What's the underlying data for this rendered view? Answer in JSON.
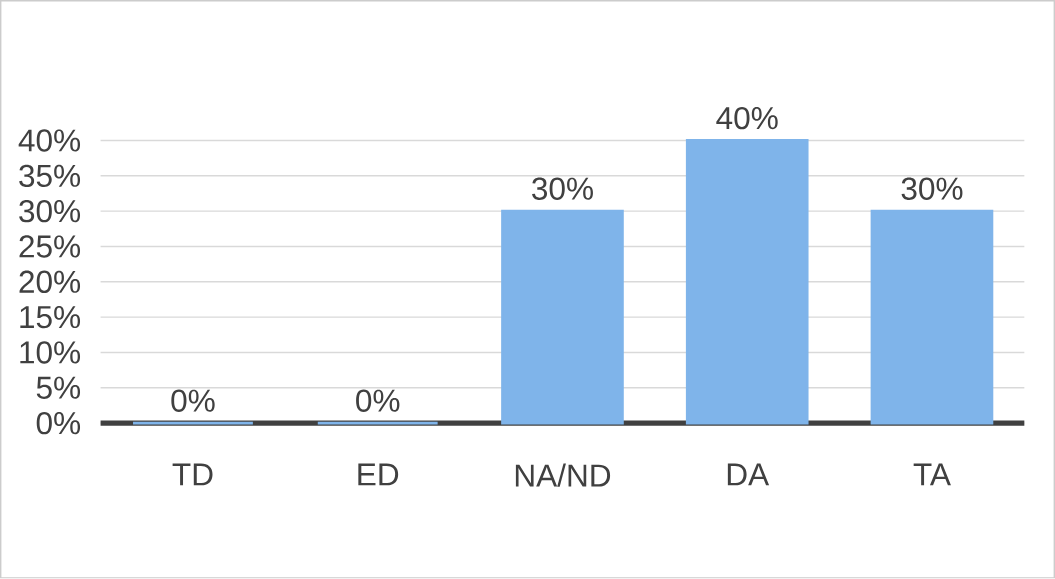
{
  "chart_data": {
    "type": "bar",
    "categories": [
      "TD",
      "ED",
      "NA/ND",
      "DA",
      "TA"
    ],
    "values": [
      0,
      0,
      30,
      40,
      30
    ],
    "value_labels": [
      "0%",
      "0%",
      "30%",
      "40%",
      "30%"
    ],
    "color": "#7fb4ea",
    "ylim": [
      0,
      40
    ],
    "yticks": [
      {
        "value": 0,
        "label": "0%"
      },
      {
        "value": 5,
        "label": "5%"
      },
      {
        "value": 10,
        "label": "10%"
      },
      {
        "value": 15,
        "label": "15%"
      },
      {
        "value": 20,
        "label": "20%"
      },
      {
        "value": 25,
        "label": "25%"
      },
      {
        "value": 30,
        "label": "30%"
      },
      {
        "value": 35,
        "label": "35%"
      },
      {
        "value": 40,
        "label": "40%"
      }
    ],
    "grid": true
  }
}
